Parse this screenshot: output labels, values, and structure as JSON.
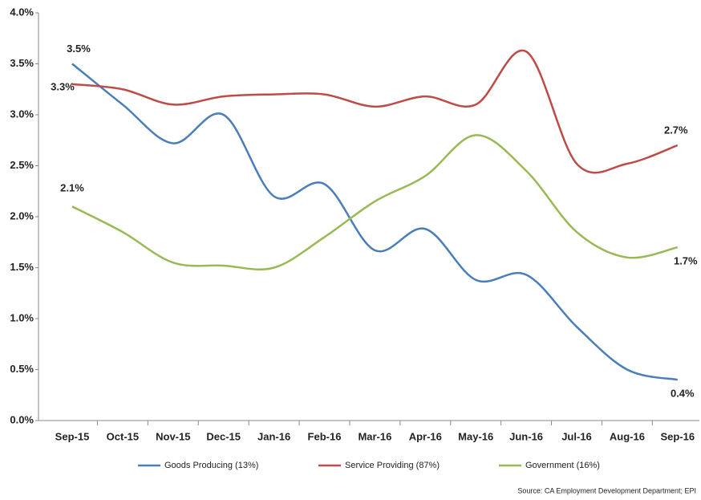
{
  "chart_data": {
    "type": "line",
    "categories": [
      "Sep-15",
      "Oct-15",
      "Nov-15",
      "Dec-15",
      "Jan-16",
      "Feb-16",
      "Mar-16",
      "Apr-16",
      "May-16",
      "Jun-16",
      "Jul-16",
      "Aug-16",
      "Sep-16"
    ],
    "series": [
      {
        "name": "Goods Producing (13%)",
        "color": "#4a7ebb",
        "values": [
          3.5,
          3.1,
          2.72,
          3.0,
          2.2,
          2.32,
          1.67,
          1.88,
          1.38,
          1.43,
          0.92,
          0.5,
          0.4
        ],
        "value_labels": [
          "3.5%",
          null,
          null,
          null,
          null,
          null,
          null,
          null,
          null,
          null,
          null,
          null,
          "0.4%"
        ]
      },
      {
        "name": "Service Providing (87%)",
        "color": "#be4b48",
        "values": [
          3.3,
          3.25,
          3.1,
          3.18,
          3.2,
          3.2,
          3.08,
          3.18,
          3.1,
          3.62,
          2.52,
          2.52,
          2.7
        ],
        "value_labels": [
          "3.3%",
          null,
          null,
          null,
          null,
          null,
          null,
          null,
          null,
          null,
          null,
          null,
          "2.7%"
        ]
      },
      {
        "name": "Government (16%)",
        "color": "#98b954",
        "values": [
          2.1,
          1.85,
          1.55,
          1.52,
          1.5,
          1.8,
          2.15,
          2.4,
          2.8,
          2.45,
          1.85,
          1.6,
          1.7
        ],
        "value_labels": [
          "2.1%",
          null,
          null,
          null,
          null,
          null,
          null,
          null,
          null,
          null,
          null,
          null,
          "1.7%"
        ]
      }
    ],
    "ylim": [
      0,
      4
    ],
    "yticks": [
      {
        "value": 0,
        "label": "0.0%"
      },
      {
        "value": 0.5,
        "label": "0.5%"
      },
      {
        "value": 1,
        "label": "1.0%"
      },
      {
        "value": 1.5,
        "label": "1.5%"
      },
      {
        "value": 2,
        "label": "2.0%"
      },
      {
        "value": 2.5,
        "label": "2.5%"
      },
      {
        "value": 3,
        "label": "3.0%"
      },
      {
        "value": 3.5,
        "label": "3.5%"
      },
      {
        "value": 4,
        "label": "4.0%"
      }
    ],
    "grid": false,
    "legend": "bottom",
    "source": "Source:  CA Employment Development Department; EPI"
  }
}
